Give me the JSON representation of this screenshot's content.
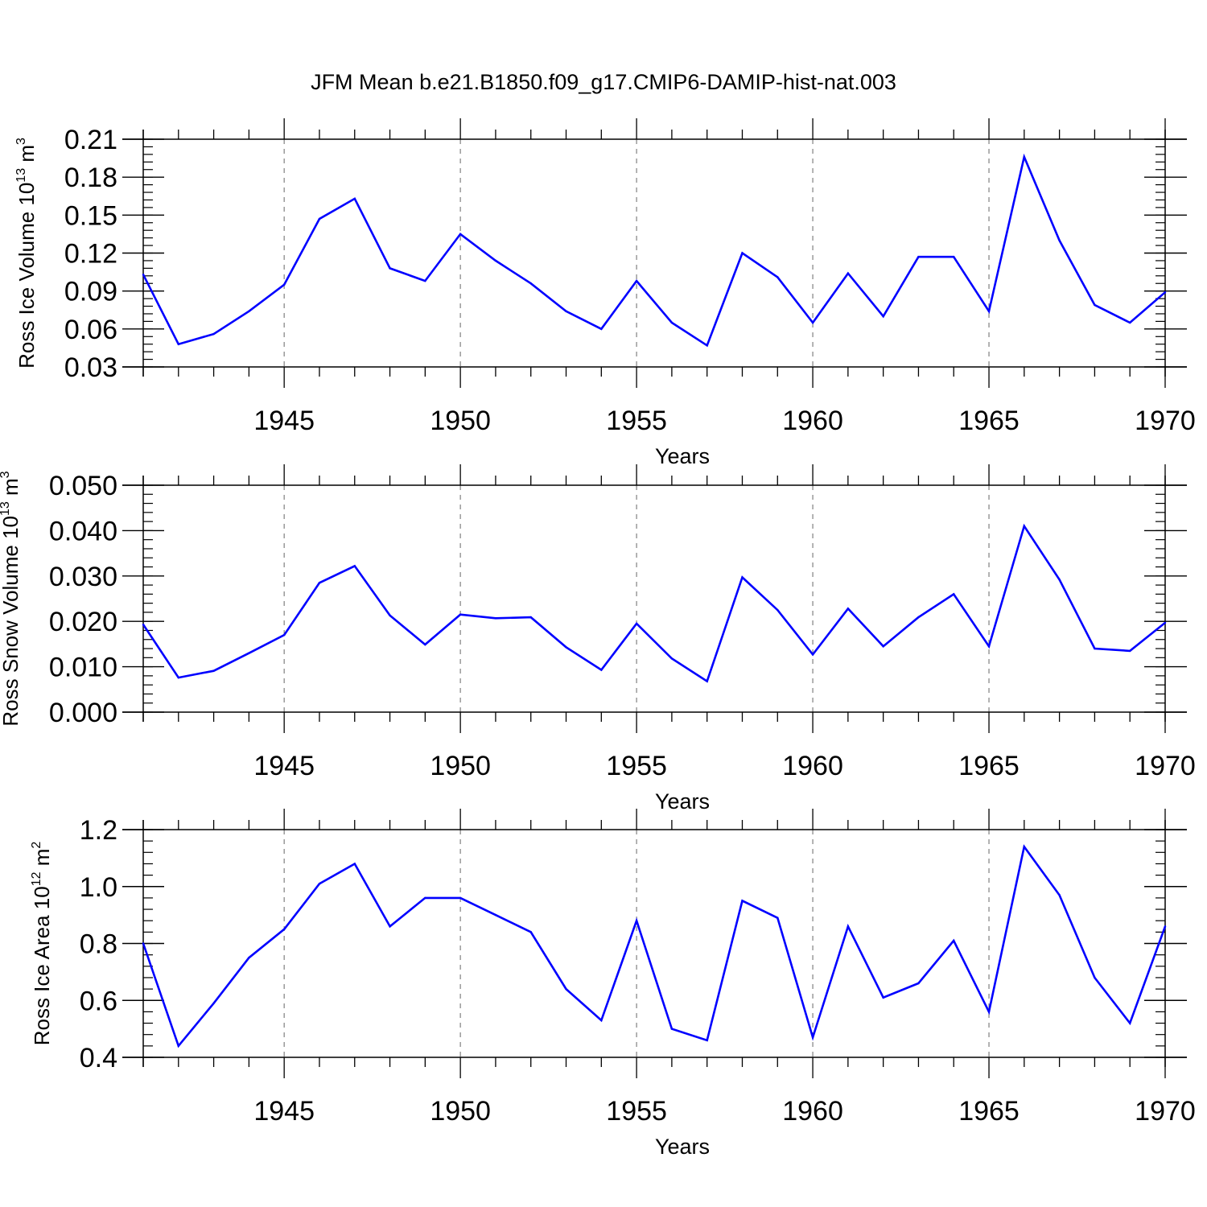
{
  "title": "JFM Mean b.e21.B1850.f09_g17.CMIP6-DAMIP-hist-nat.003",
  "colors": {
    "line": "#0000ff",
    "axis": "#000000",
    "grid": "#808080",
    "background": "#ffffff"
  },
  "chart_data": [
    {
      "type": "line",
      "title": "JFM Mean b.e21.B1850.f09_g17.CMIP6-DAMIP-hist-nat.003",
      "xlabel": "Years",
      "ylabel": "Ross Ice Volume 10",
      "ylabel_exp": "13",
      "ylabel_unit": " m",
      "ylabel_unit_exp": "3",
      "xlim": [
        1941,
        1970
      ],
      "ylim": [
        0.03,
        0.21
      ],
      "xticks": [
        1945,
        1950,
        1955,
        1960,
        1965,
        1970
      ],
      "yticks": [
        0.03,
        0.06,
        0.09,
        0.12,
        0.15,
        0.18,
        0.21
      ],
      "ytick_labels": [
        "0.03",
        "0.06",
        "0.09",
        "0.12",
        "0.15",
        "0.18",
        "0.21"
      ],
      "y_minor_step": 0.006,
      "grid": "x-dashed",
      "x": [
        1941,
        1942,
        1943,
        1944,
        1945,
        1946,
        1947,
        1948,
        1949,
        1950,
        1951,
        1952,
        1953,
        1954,
        1955,
        1956,
        1957,
        1958,
        1959,
        1960,
        1961,
        1962,
        1963,
        1964,
        1965,
        1966,
        1967,
        1968,
        1969,
        1970
      ],
      "series": [
        {
          "name": "Ross Ice Volume",
          "values": [
            0.103,
            0.048,
            0.056,
            0.074,
            0.095,
            0.147,
            0.163,
            0.108,
            0.098,
            0.135,
            0.114,
            0.096,
            0.074,
            0.06,
            0.098,
            0.065,
            0.047,
            0.12,
            0.101,
            0.065,
            0.104,
            0.07,
            0.117,
            0.117,
            0.074,
            0.196,
            0.13,
            0.079,
            0.065,
            0.089
          ]
        }
      ]
    },
    {
      "type": "line",
      "xlabel": "Years",
      "ylabel": "Ross Snow Volume 10",
      "ylabel_exp": "13",
      "ylabel_unit": " m",
      "ylabel_unit_exp": "3",
      "xlim": [
        1941,
        1970
      ],
      "ylim": [
        0.0,
        0.05
      ],
      "xticks": [
        1945,
        1950,
        1955,
        1960,
        1965,
        1970
      ],
      "yticks": [
        0.0,
        0.01,
        0.02,
        0.03,
        0.04,
        0.05
      ],
      "ytick_labels": [
        "0.000",
        "0.010",
        "0.020",
        "0.030",
        "0.040",
        "0.050"
      ],
      "y_minor_step": 0.002,
      "grid": "x-dashed",
      "x": [
        1941,
        1942,
        1943,
        1944,
        1945,
        1946,
        1947,
        1948,
        1949,
        1950,
        1951,
        1952,
        1953,
        1954,
        1955,
        1956,
        1957,
        1958,
        1959,
        1960,
        1961,
        1962,
        1963,
        1964,
        1965,
        1966,
        1967,
        1968,
        1969,
        1970
      ],
      "series": [
        {
          "name": "Ross Snow Volume",
          "values": [
            0.0193,
            0.0076,
            0.0091,
            0.013,
            0.017,
            0.0285,
            0.0322,
            0.0213,
            0.0149,
            0.0215,
            0.0207,
            0.0209,
            0.0143,
            0.0093,
            0.0195,
            0.0118,
            0.0068,
            0.0297,
            0.0225,
            0.0127,
            0.0228,
            0.0145,
            0.0209,
            0.026,
            0.0145,
            0.041,
            0.0292,
            0.014,
            0.0135,
            0.0197
          ]
        }
      ]
    },
    {
      "type": "line",
      "xlabel": "Years",
      "ylabel": "Ross Ice Area 10",
      "ylabel_exp": "12",
      "ylabel_unit": " m",
      "ylabel_unit_exp": "2",
      "xlim": [
        1941,
        1970
      ],
      "ylim": [
        0.4,
        1.2
      ],
      "xticks": [
        1945,
        1950,
        1955,
        1960,
        1965,
        1970
      ],
      "yticks": [
        0.4,
        0.6,
        0.8,
        1.0,
        1.2
      ],
      "ytick_labels": [
        "0.4",
        "0.6",
        "0.8",
        "1.0",
        "1.2"
      ],
      "y_minor_step": 0.04,
      "grid": "x-dashed",
      "x": [
        1941,
        1942,
        1943,
        1944,
        1945,
        1946,
        1947,
        1948,
        1949,
        1950,
        1951,
        1952,
        1953,
        1954,
        1955,
        1956,
        1957,
        1958,
        1959,
        1960,
        1961,
        1962,
        1963,
        1964,
        1965,
        1966,
        1967,
        1968,
        1969,
        1970
      ],
      "series": [
        {
          "name": "Ross Ice Area",
          "values": [
            0.8,
            0.44,
            0.59,
            0.75,
            0.85,
            1.01,
            1.08,
            0.86,
            0.96,
            0.96,
            0.9,
            0.84,
            0.64,
            0.53,
            0.88,
            0.5,
            0.46,
            0.95,
            0.89,
            0.47,
            0.86,
            0.61,
            0.66,
            0.81,
            0.56,
            1.14,
            0.97,
            0.68,
            0.52,
            0.86
          ]
        }
      ]
    }
  ]
}
